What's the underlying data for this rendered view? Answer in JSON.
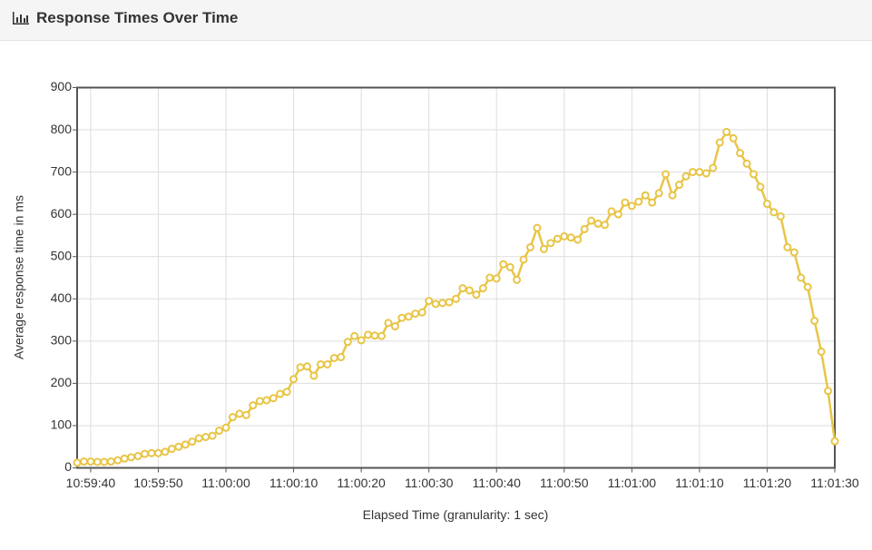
{
  "chart_data": {
    "type": "line",
    "title": "Response Times Over Time",
    "x_label": "Elapsed Time (granularity: 1 sec)",
    "y_label": "Average response time in ms",
    "color": "#e8c547",
    "grid": true,
    "x": [
      "10:59:38",
      "10:59:39",
      "10:59:40",
      "10:59:41",
      "10:59:42",
      "10:59:43",
      "10:59:44",
      "10:59:45",
      "10:59:46",
      "10:59:47",
      "10:59:48",
      "10:59:49",
      "10:59:50",
      "10:59:51",
      "10:59:52",
      "10:59:53",
      "10:59:54",
      "10:59:55",
      "10:59:56",
      "10:59:57",
      "10:59:58",
      "10:59:59",
      "11:00:00",
      "11:00:01",
      "11:00:02",
      "11:00:03",
      "11:00:04",
      "11:00:05",
      "11:00:06",
      "11:00:07",
      "11:00:08",
      "11:00:09",
      "11:00:10",
      "11:00:11",
      "11:00:12",
      "11:00:13",
      "11:00:14",
      "11:00:15",
      "11:00:16",
      "11:00:17",
      "11:00:18",
      "11:00:19",
      "11:00:20",
      "11:00:21",
      "11:00:22",
      "11:00:23",
      "11:00:24",
      "11:00:25",
      "11:00:26",
      "11:00:27",
      "11:00:28",
      "11:00:29",
      "11:00:30",
      "11:00:31",
      "11:00:32",
      "11:00:33",
      "11:00:34",
      "11:00:35",
      "11:00:36",
      "11:00:37",
      "11:00:38",
      "11:00:39",
      "11:00:40",
      "11:00:41",
      "11:00:42",
      "11:00:43",
      "11:00:44",
      "11:00:45",
      "11:00:46",
      "11:00:47",
      "11:00:48",
      "11:00:49",
      "11:00:50",
      "11:00:51",
      "11:00:52",
      "11:00:53",
      "11:00:54",
      "11:00:55",
      "11:00:56",
      "11:00:57",
      "11:00:58",
      "11:00:59",
      "11:01:00",
      "11:01:01",
      "11:01:02",
      "11:01:03",
      "11:01:04",
      "11:01:05",
      "11:01:06",
      "11:01:07",
      "11:01:08",
      "11:01:09",
      "11:01:10",
      "11:01:11",
      "11:01:12",
      "11:01:13",
      "11:01:14",
      "11:01:15",
      "11:01:16",
      "11:01:17",
      "11:01:18",
      "11:01:19",
      "11:01:20",
      "11:01:21",
      "11:01:22",
      "11:01:23",
      "11:01:24",
      "11:01:25",
      "11:01:26",
      "11:01:27",
      "11:01:28",
      "11:01:29",
      "11:01:30"
    ],
    "values": [
      12,
      15,
      15,
      14,
      14,
      15,
      18,
      22,
      25,
      28,
      33,
      35,
      35,
      38,
      45,
      50,
      55,
      62,
      70,
      73,
      76,
      88,
      95,
      120,
      128,
      125,
      148,
      158,
      160,
      165,
      175,
      180,
      210,
      238,
      240,
      218,
      245,
      245,
      260,
      262,
      298,
      312,
      302,
      315,
      313,
      312,
      343,
      335,
      355,
      358,
      365,
      368,
      395,
      388,
      390,
      392,
      400,
      425,
      420,
      410,
      425,
      450,
      448,
      482,
      475,
      445,
      493,
      522,
      568,
      518,
      532,
      542,
      548,
      545,
      540,
      565,
      585,
      578,
      575,
      607,
      600,
      628,
      620,
      630,
      645,
      628,
      650,
      695,
      645,
      670,
      690,
      700,
      700,
      697,
      710,
      770,
      795,
      780,
      745,
      720,
      695,
      665,
      625,
      605,
      595,
      522,
      510,
      450,
      428,
      348,
      275,
      182,
      63
    ],
    "xlim": [
      "10:59:38",
      "11:01:30"
    ],
    "xticks": [
      "10:59:40",
      "10:59:50",
      "11:00:00",
      "11:00:10",
      "11:00:20",
      "11:00:30",
      "11:00:40",
      "11:00:50",
      "11:01:00",
      "11:01:10",
      "11:01:20",
      "11:01:30"
    ],
    "ylim": [
      0,
      900
    ],
    "yticks": [
      0,
      100,
      200,
      300,
      400,
      500,
      600,
      700,
      800,
      900
    ]
  }
}
